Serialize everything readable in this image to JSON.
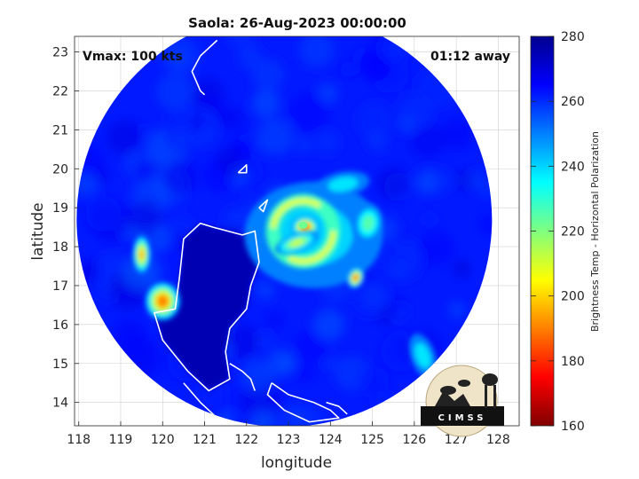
{
  "chart_data": {
    "type": "heatmap",
    "title": "Saola: 26-Aug-2023 00:00:00",
    "xlabel": "longitude",
    "ylabel": "latitude",
    "xlim": [
      117.9,
      128.5
    ],
    "ylim": [
      13.4,
      23.4
    ],
    "xticks": [
      118,
      119,
      120,
      121,
      122,
      123,
      124,
      125,
      126,
      127,
      128
    ],
    "yticks": [
      14,
      15,
      16,
      17,
      18,
      19,
      20,
      21,
      22,
      23
    ],
    "grid": true,
    "annotations": [
      {
        "text": "Vmax: 100 kts",
        "position": "top-left"
      },
      {
        "text": "01:12 away",
        "position": "top-right"
      }
    ],
    "colorbar": {
      "label": "Brightness Temp - Horizontal Polarization",
      "range": [
        160,
        280
      ],
      "ticks": [
        160,
        180,
        200,
        220,
        240,
        260,
        280
      ],
      "colormap": "jet",
      "position": "right"
    },
    "swath": {
      "center": [
        122.9,
        18.7
      ],
      "radius_deg": 4.95,
      "background_value": 262
    },
    "features": [
      {
        "name": "eyewall",
        "lon": 123.4,
        "lat": 18.5,
        "value": 185
      },
      {
        "name": "inner rainband",
        "lon": 123.2,
        "lat": 18.1,
        "value": 210
      },
      {
        "name": "eastern cell",
        "lon": 124.6,
        "lat": 17.2,
        "value": 180
      },
      {
        "name": "luzon convection",
        "lon": 120.0,
        "lat": 16.6,
        "value": 190
      },
      {
        "name": "luzon convection north",
        "lon": 119.5,
        "lat": 17.8,
        "value": 195
      },
      {
        "name": "outer band east",
        "lon": 124.9,
        "lat": 18.6,
        "value": 225
      },
      {
        "name": "southeast band",
        "lon": 126.2,
        "lat": 15.2,
        "value": 238
      },
      {
        "name": "northern band",
        "lon": 124.3,
        "lat": 19.6,
        "value": 238
      }
    ]
  },
  "logo": {
    "text": "CIMSS"
  },
  "colors": {
    "coast": "#ffffff",
    "grid": "#d0d0d0",
    "outside": "#ffffff"
  }
}
